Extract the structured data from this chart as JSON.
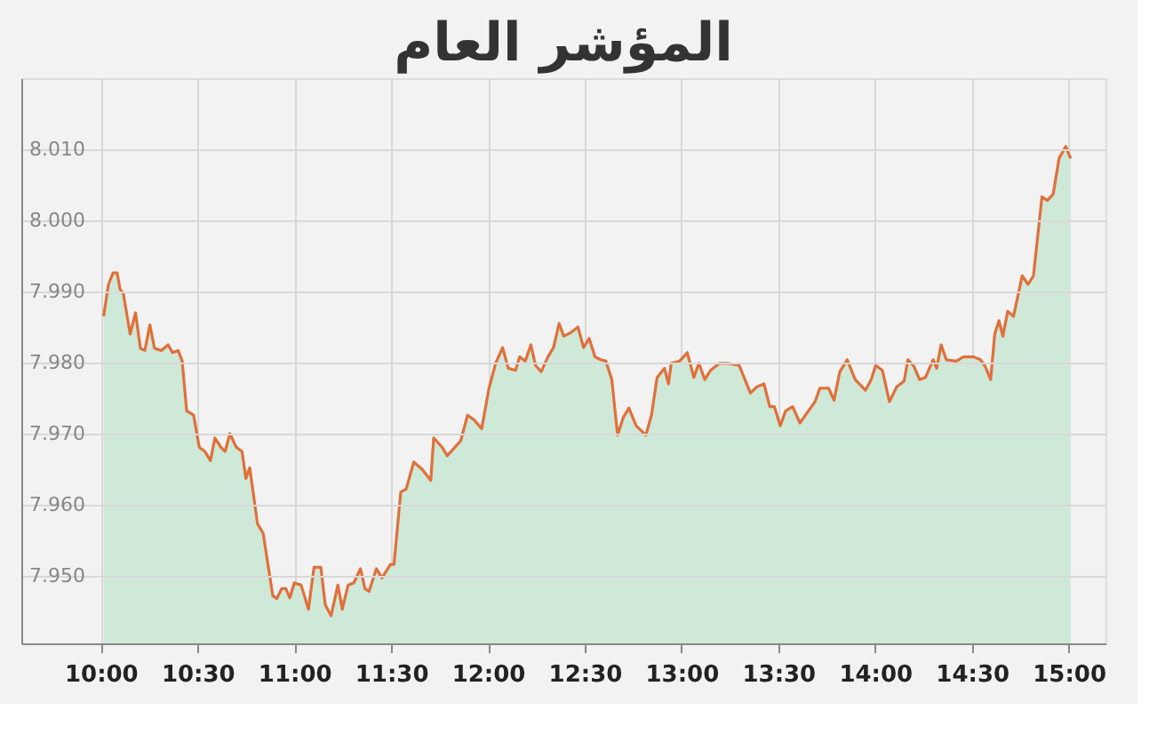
{
  "chart_data": {
    "type": "area",
    "title": "المؤشر العام",
    "xlim": [
      9.59,
      15.19
    ],
    "ylim": [
      7940.5,
      8020
    ],
    "xticks": [
      {
        "value": 10,
        "label": "10:00"
      },
      {
        "value": 10.5,
        "label": "10:30"
      },
      {
        "value": 11,
        "label": "11:00"
      },
      {
        "value": 11.5,
        "label": "11:30"
      },
      {
        "value": 12,
        "label": "12:00"
      },
      {
        "value": 12.5,
        "label": "12:30"
      },
      {
        "value": 13,
        "label": "13:00"
      },
      {
        "value": 13.5,
        "label": "13:30"
      },
      {
        "value": 14,
        "label": "14:00"
      },
      {
        "value": 14.5,
        "label": "14:30"
      },
      {
        "value": 15,
        "label": "15:00"
      }
    ],
    "yticks": [
      {
        "value": 7950,
        "label": "7.950"
      },
      {
        "value": 7960,
        "label": "7.960"
      },
      {
        "value": 7970,
        "label": "7.970"
      },
      {
        "value": 7980,
        "label": "7.980"
      },
      {
        "value": 7990,
        "label": "7.990"
      },
      {
        "value": 8000,
        "label": "8.000"
      },
      {
        "value": 8010,
        "label": "8.010"
      }
    ],
    "grid": true,
    "series": [
      {
        "color": "#e0703a",
        "x": [
          10.015,
          10.04,
          10.064,
          10.085,
          10.1,
          10.117,
          10.152,
          10.18,
          10.205,
          10.228,
          10.254,
          10.278,
          10.313,
          10.348,
          10.371,
          10.4,
          10.421,
          10.444,
          10.48,
          10.509,
          10.538,
          10.567,
          10.59,
          10.62,
          10.643,
          10.667,
          10.7,
          10.73,
          10.75,
          10.77,
          10.81,
          10.839,
          10.889,
          10.91,
          10.935,
          10.956,
          10.977,
          11.0,
          11.035,
          11.073,
          11.102,
          11.137,
          11.16,
          11.19,
          11.225,
          11.248,
          11.278,
          11.307,
          11.342,
          11.365,
          11.386,
          11.424,
          11.453,
          11.497,
          11.515,
          11.55,
          11.578,
          11.617,
          11.66,
          11.705,
          11.72,
          11.763,
          11.79,
          11.83,
          11.86,
          11.895,
          11.93,
          11.968,
          12.006,
          12.04,
          12.076,
          12.105,
          12.143,
          12.164,
          12.193,
          12.222,
          12.246,
          12.275,
          12.31,
          12.339,
          12.368,
          12.392,
          12.427,
          12.465,
          12.494,
          12.523,
          12.553,
          12.582,
          12.61,
          12.64,
          12.67,
          12.7,
          12.728,
          12.766,
          12.816,
          12.845,
          12.874,
          12.912,
          12.933,
          12.947,
          12.99,
          13.03,
          13.064,
          13.09,
          13.12,
          13.15,
          13.196,
          13.24,
          13.298,
          13.356,
          13.39,
          13.426,
          13.456,
          13.48,
          13.51,
          13.538,
          13.574,
          13.612,
          13.656,
          13.69,
          13.715,
          13.76,
          13.788,
          13.818,
          13.856,
          13.897,
          13.95,
          13.98,
          14.003,
          14.038,
          14.074,
          14.112,
          14.15,
          14.17,
          14.2,
          14.23,
          14.26,
          14.3,
          14.318,
          14.341,
          14.368,
          14.42,
          14.456,
          14.51,
          14.544,
          14.568,
          14.597,
          14.618,
          14.64,
          14.66,
          14.685,
          14.715,
          14.76,
          14.79,
          14.818,
          14.862,
          14.89,
          14.92,
          14.95,
          14.985,
          15.01
        ],
        "values": [
          7986.5,
          7991,
          7992.6,
          7992.6,
          7990.3,
          7989.7,
          7984,
          7987,
          7982,
          7981.7,
          7985.3,
          7982,
          7981.7,
          7982.5,
          7981.4,
          7981.7,
          7980.2,
          7973.2,
          7972.6,
          7968.1,
          7967.5,
          7966.2,
          7969.4,
          7968.1,
          7967.5,
          7970,
          7968.1,
          7967.5,
          7963.7,
          7965.2,
          7957.3,
          7956,
          7947.2,
          7946.8,
          7948.2,
          7948.2,
          7946.9,
          7949,
          7948.7,
          7945.3,
          7951.2,
          7951.2,
          7945.9,
          7944.4,
          7948.7,
          7945.3,
          7948.7,
          7949,
          7951,
          7948.2,
          7947.8,
          7951,
          7949.7,
          7951.6,
          7951.6,
          7961.8,
          7962.2,
          7966,
          7965,
          7963.4,
          7969.4,
          7968.1,
          7966.9,
          7968.1,
          7969,
          7972.6,
          7971.9,
          7970.7,
          7976.4,
          7979.9,
          7982.1,
          7979.2,
          7978.9,
          7980.8,
          7980.2,
          7982.5,
          7979.6,
          7978.7,
          7980.8,
          7982.1,
          7985.5,
          7983.7,
          7984.2,
          7985,
          7982.1,
          7983.4,
          7980.8,
          7980.4,
          7980.2,
          7977.6,
          7969.8,
          7972.3,
          7973.6,
          7971.1,
          7969.8,
          7972.6,
          7977.9,
          7979.2,
          7977,
          7979.9,
          7980.2,
          7981.4,
          7977.9,
          7979.9,
          7977.6,
          7978.9,
          7979.9,
          7979.9,
          7979.6,
          7975.7,
          7976.6,
          7977,
          7973.8,
          7973.8,
          7971.1,
          7973.2,
          7973.8,
          7971.5,
          7973.2,
          7974.5,
          7976.4,
          7976.4,
          7974.7,
          7978.7,
          7980.4,
          7977.6,
          7976.1,
          7977.6,
          7979.6,
          7978.9,
          7974.5,
          7976.6,
          7977.4,
          7980.4,
          7979.5,
          7977.6,
          7977.9,
          7980.4,
          7979.2,
          7982.5,
          7980.4,
          7980.2,
          7980.8,
          7980.8,
          7980.4,
          7979.5,
          7977.6,
          7984,
          7985.9,
          7983.7,
          7987.2,
          7986.5,
          7992.2,
          7991,
          7992.2,
          8003.3,
          8002.8,
          8003.7,
          8008.7,
          8010.4,
          8008.7
        ]
      }
    ]
  }
}
